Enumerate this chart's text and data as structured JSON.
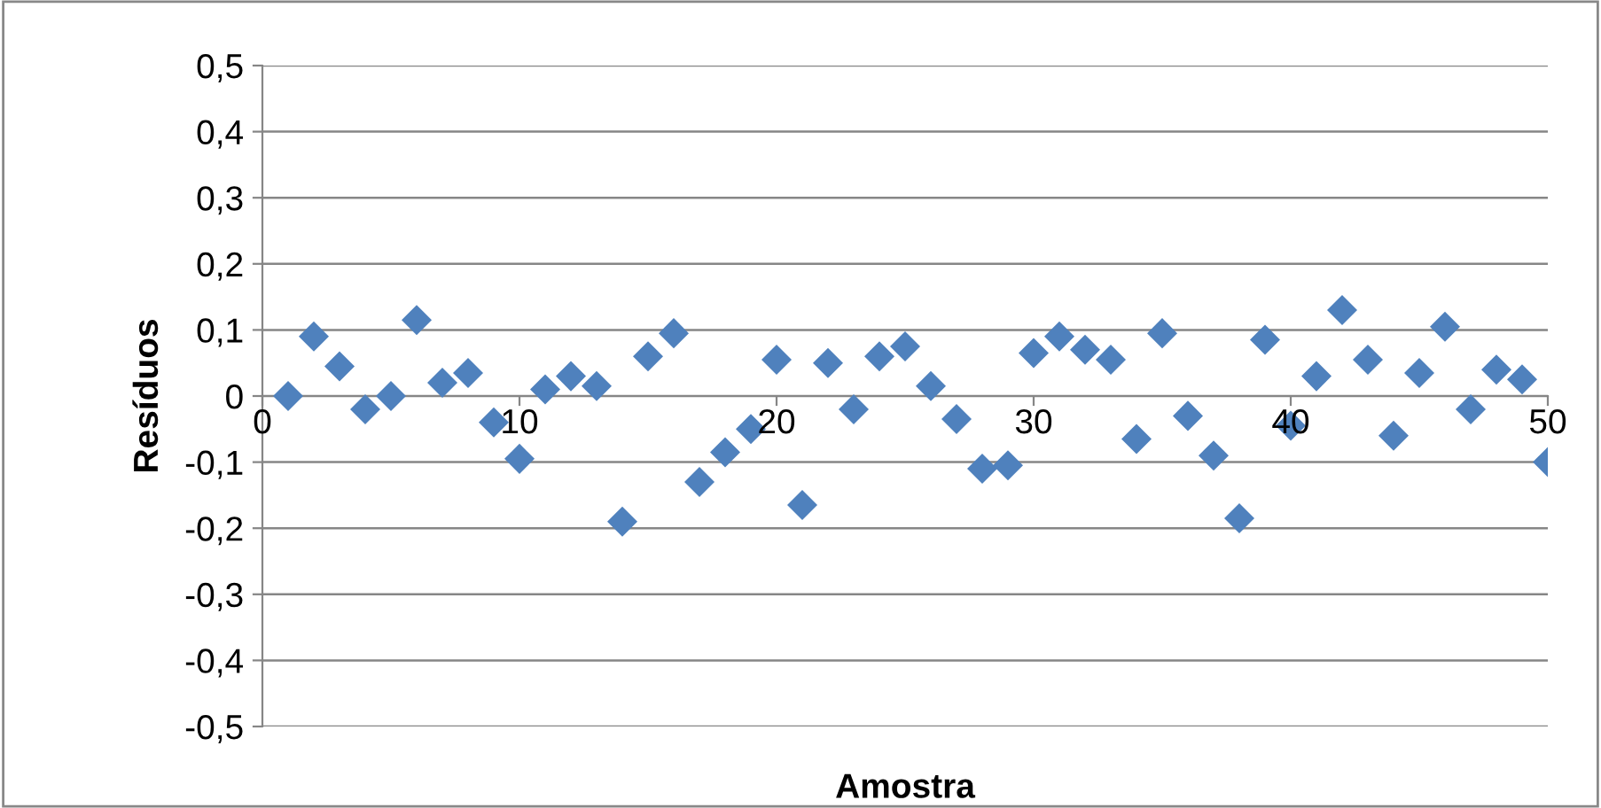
{
  "chart_data": {
    "type": "scatter",
    "xlabel": "Amostra",
    "ylabel": "Resíduos",
    "x": [
      1,
      2,
      3,
      4,
      5,
      6,
      7,
      8,
      9,
      10,
      11,
      12,
      13,
      14,
      15,
      16,
      17,
      18,
      19,
      20,
      21,
      22,
      23,
      24,
      25,
      26,
      27,
      28,
      29,
      30,
      31,
      32,
      33,
      34,
      35,
      36,
      37,
      38,
      39,
      40,
      41,
      42,
      43,
      44,
      45,
      46,
      47,
      48,
      49,
      50
    ],
    "series": [
      {
        "color": "#4f81bd",
        "values": [
          0.0,
          0.09,
          0.045,
          -0.02,
          0.0,
          0.115,
          0.02,
          0.035,
          -0.04,
          -0.095,
          0.01,
          0.03,
          0.015,
          -0.19,
          0.06,
          0.095,
          -0.13,
          -0.085,
          -0.05,
          0.055,
          -0.165,
          0.05,
          -0.02,
          0.06,
          0.075,
          0.015,
          -0.035,
          -0.11,
          -0.105,
          0.065,
          0.09,
          0.07,
          0.055,
          -0.065,
          0.095,
          -0.03,
          -0.09,
          -0.185,
          0.085,
          -0.045,
          0.03,
          0.13,
          0.055,
          -0.06,
          0.035,
          0.105,
          -0.02,
          0.04,
          0.025,
          -0.1
        ]
      }
    ],
    "xlim": [
      0,
      50
    ],
    "xticks": [
      0,
      10,
      20,
      30,
      40,
      50
    ],
    "ylim": [
      -0.5,
      0.5
    ],
    "yticks": [
      {
        "value": -0.5,
        "label": "-0,5"
      },
      {
        "value": -0.4,
        "label": "-0,4"
      },
      {
        "value": -0.3,
        "label": "-0,3"
      },
      {
        "value": -0.2,
        "label": "-0,2"
      },
      {
        "value": -0.1,
        "label": "-0,1"
      },
      {
        "value": 0,
        "label": "0"
      },
      {
        "value": 0.1,
        "label": "0,1"
      },
      {
        "value": 0.2,
        "label": "0,2"
      },
      {
        "value": 0.3,
        "label": "0,3"
      },
      {
        "value": 0.4,
        "label": "0,4"
      },
      {
        "value": 0.5,
        "label": "0,5"
      }
    ],
    "grid": "y",
    "marker": "diamond",
    "legend": false
  }
}
